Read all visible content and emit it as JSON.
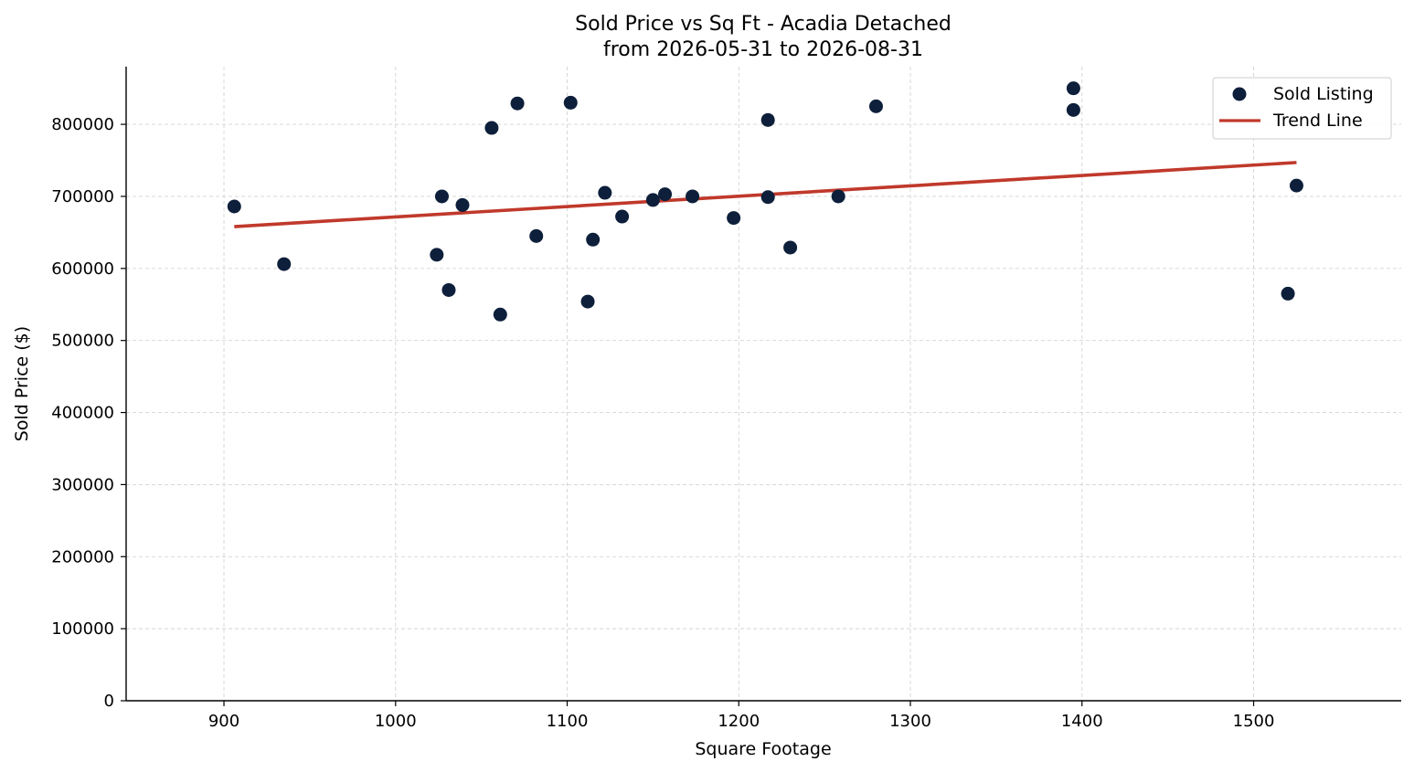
{
  "chart_data": {
    "type": "scatter",
    "title": "Sold Price vs Sq Ft - Acadia Detached",
    "subtitle": "from 2026-05-31 to 2026-08-31",
    "xlabel": "Square Footage",
    "ylabel": "Sold Price ($)",
    "xlim": [
      843,
      1586
    ],
    "ylim": [
      0,
      880000
    ],
    "xticks": [
      900,
      1000,
      1100,
      1200,
      1300,
      1400,
      1500
    ],
    "yticks": [
      0,
      100000,
      200000,
      300000,
      400000,
      500000,
      600000,
      700000,
      800000
    ],
    "grid": true,
    "legend_position": "top-right",
    "colors": {
      "points": "#0d1f3a",
      "trend": "#c0392b"
    },
    "series": [
      {
        "name": "Sold Listing",
        "kind": "scatter",
        "x": [
          906,
          935,
          1024,
          1027,
          1031,
          1039,
          1056,
          1061,
          1071,
          1082,
          1102,
          1112,
          1115,
          1122,
          1132,
          1150,
          1157,
          1173,
          1197,
          1217,
          1217,
          1230,
          1258,
          1280,
          1395,
          1395,
          1520,
          1525
        ],
        "y": [
          686000,
          606000,
          619000,
          700000,
          570000,
          688000,
          795000,
          536000,
          829000,
          645000,
          830000,
          554000,
          640000,
          705000,
          672000,
          695000,
          703000,
          700000,
          670000,
          806000,
          699000,
          629000,
          700000,
          825000,
          850000,
          820000,
          565000,
          715000
        ]
      },
      {
        "name": "Trend Line",
        "kind": "line",
        "x": [
          906,
          1525
        ],
        "y": [
          658000,
          747000
        ]
      }
    ]
  }
}
